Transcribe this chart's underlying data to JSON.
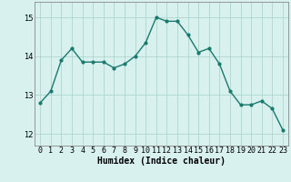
{
  "x": [
    0,
    1,
    2,
    3,
    4,
    5,
    6,
    7,
    8,
    9,
    10,
    11,
    12,
    13,
    14,
    15,
    16,
    17,
    18,
    19,
    20,
    21,
    22,
    23
  ],
  "y": [
    12.8,
    13.1,
    13.9,
    14.2,
    13.85,
    13.85,
    13.85,
    13.7,
    13.8,
    14.0,
    14.35,
    15.0,
    14.9,
    14.9,
    14.55,
    14.1,
    14.2,
    13.8,
    13.1,
    12.75,
    12.75,
    12.85,
    12.65,
    12.1
  ],
  "line_color": "#1a7a6e",
  "marker": "o",
  "marker_size": 2.0,
  "line_width": 1.0,
  "background_color": "#d8f0ee",
  "grid_color": "#aed6d0",
  "xlabel": "Humidex (Indice chaleur)",
  "xlabel_fontsize": 7,
  "tick_fontsize": 6,
  "ylim": [
    11.7,
    15.4
  ],
  "xlim": [
    -0.5,
    23.5
  ],
  "yticks": [
    12,
    13,
    14,
    15
  ],
  "xtick_labels": [
    "0",
    "1",
    "2",
    "3",
    "4",
    "5",
    "6",
    "7",
    "8",
    "9",
    "10",
    "11",
    "12",
    "13",
    "14",
    "15",
    "16",
    "17",
    "18",
    "19",
    "20",
    "21",
    "22",
    "23"
  ]
}
